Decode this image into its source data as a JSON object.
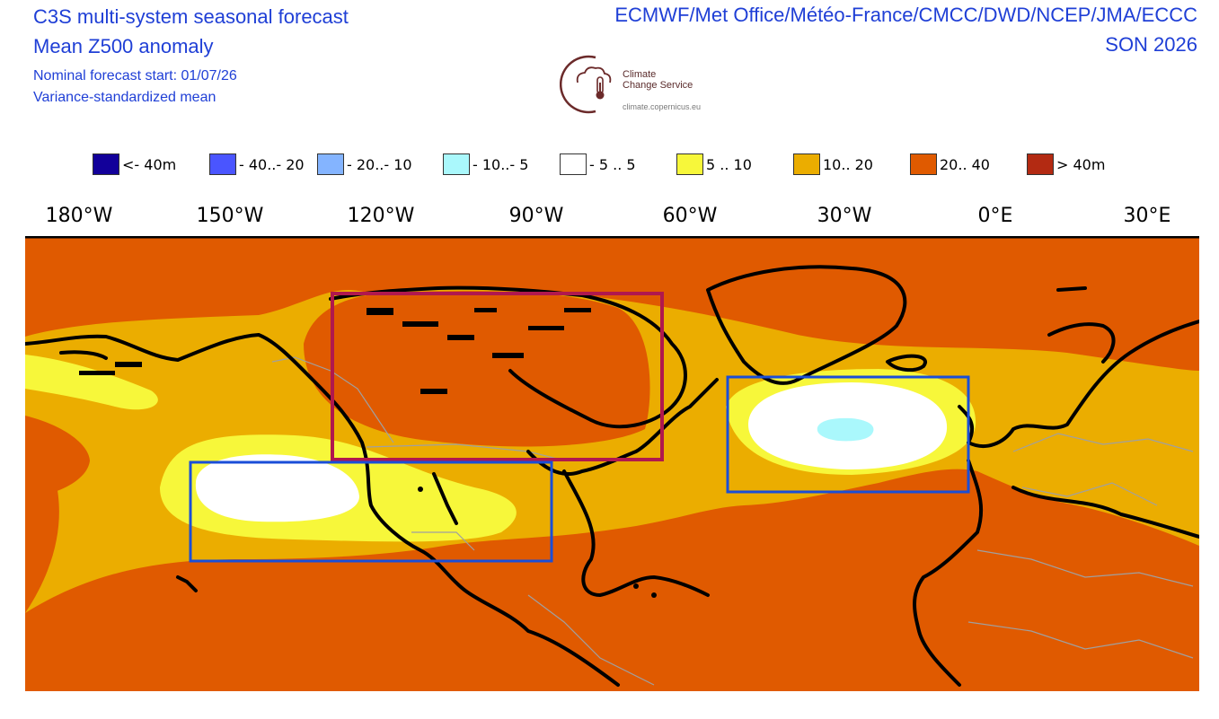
{
  "header": {
    "title_left": [
      "C3S multi-system seasonal forecast",
      "Mean Z500 anomaly",
      "Nominal forecast start: 01/07/26",
      "Variance-standardized mean"
    ],
    "title_right": [
      "ECMWF/Met Office/Météo-France/CMCC/DWD/NCEP/JMA/ECCC",
      "SON 2026"
    ]
  },
  "logo": {
    "name_line1": "Climate",
    "name_line2": "Change Service",
    "url": "climate.copernicus.eu",
    "icon": "thermometer-cloud-logo-icon"
  },
  "legend": [
    {
      "label": "<- 40m",
      "color": "#12009a"
    },
    {
      "label": "- 40..- 20",
      "color": "#4a55ff"
    },
    {
      "label": "- 20..- 10",
      "color": "#84b4ff"
    },
    {
      "label": "- 10..- 5",
      "color": "#aaf8fc"
    },
    {
      "label": "- 5 .. 5",
      "color": "#ffffff"
    },
    {
      "label": "5 .. 10",
      "color": "#f7f73a"
    },
    {
      "label": "10.. 20",
      "color": "#ebad00"
    },
    {
      "label": "20.. 40",
      "color": "#e05a00"
    },
    {
      "label": ">  40m",
      "color": "#b32a12"
    }
  ],
  "lon_ticks": [
    "180°W",
    "150°W",
    "120°W",
    "90°W",
    "60°W",
    "30°W",
    "0°E",
    "30°E"
  ],
  "colors": {
    "title_text": "#1f3fd6",
    "box_blue": "#1a4ed8",
    "box_red": "#b0184e",
    "coast": "#000000",
    "borders": "#a0a0a0"
  }
}
